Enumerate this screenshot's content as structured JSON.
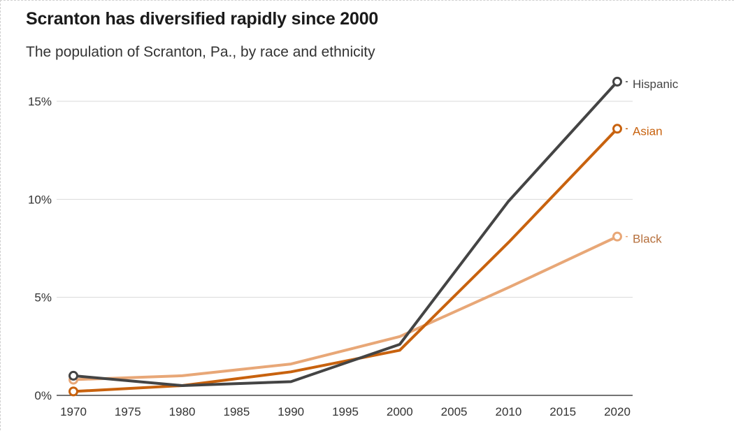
{
  "header": {
    "title": "Scranton has diversified rapidly since 2000",
    "subtitle": "The population of Scranton, Pa., by race and ethnicity"
  },
  "chart_data": {
    "type": "line",
    "title": "Scranton has diversified rapidly since 2000",
    "subtitle": "The population of Scranton, Pa., by race and ethnicity",
    "xlabel": "",
    "ylabel": "",
    "x": [
      1970,
      1980,
      1990,
      2000,
      2010,
      2020
    ],
    "xlim": [
      1970,
      2020
    ],
    "ylim": [
      0,
      15
    ],
    "x_ticks": [
      1970,
      1975,
      1980,
      1985,
      1990,
      1995,
      2000,
      2005,
      2010,
      2015,
      2020
    ],
    "x_tick_labels": [
      "1970",
      "1975",
      "1980",
      "1985",
      "1990",
      "1995",
      "2000",
      "2005",
      "2010",
      "2015",
      "2020"
    ],
    "y_ticks": [
      0,
      5,
      10,
      15
    ],
    "y_tick_labels": [
      "0%",
      "5%",
      "10%",
      "15%"
    ],
    "grid": true,
    "legend": "direct labels at line ends",
    "series": [
      {
        "name": "Black",
        "color": "#e8a777",
        "values": [
          0.8,
          1.0,
          1.6,
          3.0,
          5.5,
          8.1
        ]
      },
      {
        "name": "Asian",
        "color": "#c8620e",
        "values": [
          0.2,
          0.5,
          1.2,
          2.3,
          7.8,
          13.6
        ]
      },
      {
        "name": "Hispanic",
        "color": "#444444",
        "values": [
          1.0,
          0.5,
          0.7,
          2.6,
          9.9,
          16.0
        ]
      }
    ]
  }
}
